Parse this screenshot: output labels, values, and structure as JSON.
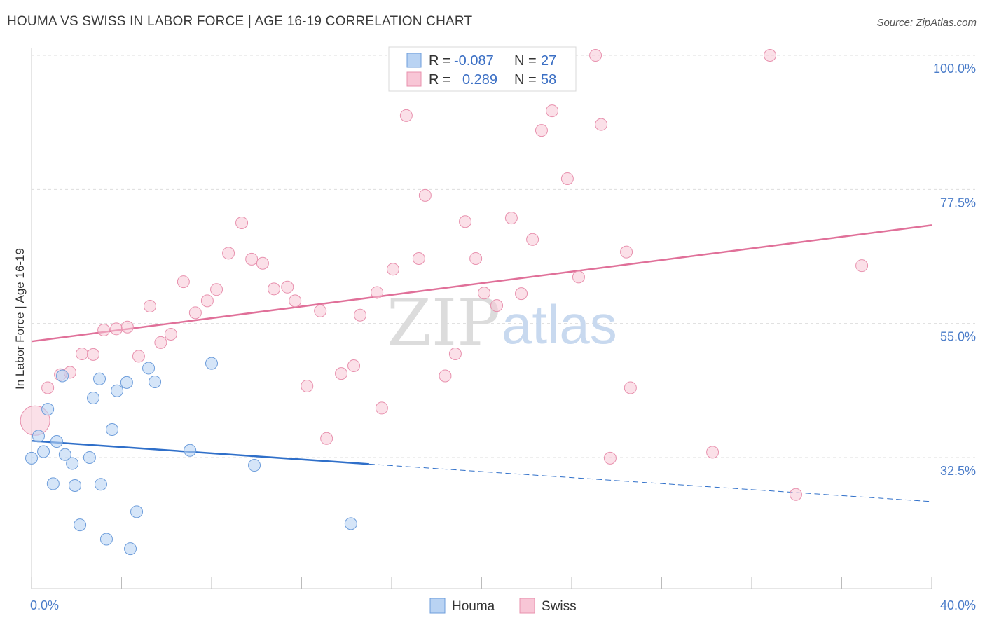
{
  "header": {
    "title": "HOUMA VS SWISS IN LABOR FORCE | AGE 16-19 CORRELATION CHART",
    "source": "Source: ZipAtlas.com"
  },
  "watermark": {
    "zip": "ZIP",
    "atlas": "atlas"
  },
  "colors": {
    "houma_fill": "#b9d3f3",
    "houma_stroke": "#6d9ddb",
    "houma_line": "#2f6fc9",
    "swiss_fill": "#f8c6d6",
    "swiss_stroke": "#e891ae",
    "swiss_line": "#e07099",
    "grid": "#dddddd",
    "axis_label": "#4a7cc9"
  },
  "legend": {
    "houma": {
      "r_label": "R =",
      "r_value": "-0.087",
      "n_label": "N =",
      "n_value": "27"
    },
    "swiss": {
      "r_label": "R =",
      "r_value": "0.289",
      "n_label": "N =",
      "n_value": "58"
    }
  },
  "bottom_legend": {
    "houma": "Houma",
    "swiss": "Swiss"
  },
  "chart_data": {
    "type": "scatter",
    "title": "HOUMA VS SWISS IN LABOR FORCE | AGE 16-19 CORRELATION CHART",
    "xlabel": "",
    "ylabel": "In Labor Force | Age 16-19",
    "xlim": [
      0,
      40
    ],
    "ylim": [
      10.5,
      100
    ],
    "x_tick_labels": [
      "0.0%",
      "40.0%"
    ],
    "y_ticks": [
      32.5,
      55.0,
      77.5,
      100.0
    ],
    "y_tick_labels": [
      "32.5%",
      "55.0%",
      "77.5%",
      "100.0%"
    ],
    "grid": true,
    "legend_position": "top-center",
    "series": [
      {
        "name": "Houma",
        "R": -0.087,
        "N": 27,
        "points": [
          [
            0.0,
            32.4
          ],
          [
            0.31,
            36.1
          ],
          [
            0.53,
            33.5
          ],
          [
            0.72,
            40.6
          ],
          [
            0.96,
            28.1
          ],
          [
            1.12,
            35.2
          ],
          [
            1.37,
            46.2
          ],
          [
            1.49,
            33.0
          ],
          [
            1.81,
            31.5
          ],
          [
            1.93,
            27.8
          ],
          [
            2.15,
            21.2
          ],
          [
            2.58,
            32.5
          ],
          [
            2.74,
            42.5
          ],
          [
            3.02,
            45.7
          ],
          [
            3.08,
            28.0
          ],
          [
            3.33,
            18.8
          ],
          [
            3.58,
            37.2
          ],
          [
            3.8,
            43.7
          ],
          [
            4.23,
            45.1
          ],
          [
            4.39,
            17.2
          ],
          [
            4.67,
            23.4
          ],
          [
            5.2,
            47.5
          ],
          [
            5.48,
            45.2
          ],
          [
            7.04,
            33.7
          ],
          [
            8.0,
            48.3
          ],
          [
            9.9,
            31.2
          ],
          [
            14.19,
            21.4
          ]
        ],
        "trend": {
          "solid": [
            [
              0,
              35.3
            ],
            [
              15,
              31.4
            ]
          ],
          "dashed": [
            [
              15,
              31.4
            ],
            [
              40,
              25.1
            ]
          ]
        }
      },
      {
        "name": "Swiss",
        "R": 0.289,
        "N": 58,
        "points": [
          [
            0.16,
            38.7
          ],
          [
            0.72,
            44.2
          ],
          [
            1.28,
            46.4
          ],
          [
            1.71,
            46.8
          ],
          [
            2.24,
            49.9
          ],
          [
            2.74,
            49.8
          ],
          [
            3.21,
            53.9
          ],
          [
            3.77,
            54.1
          ],
          [
            4.26,
            54.4
          ],
          [
            4.76,
            49.5
          ],
          [
            5.26,
            57.9
          ],
          [
            5.74,
            51.8
          ],
          [
            6.19,
            53.2
          ],
          [
            6.75,
            62.0
          ],
          [
            7.28,
            56.8
          ],
          [
            7.81,
            58.8
          ],
          [
            8.22,
            60.7
          ],
          [
            8.75,
            66.8
          ],
          [
            9.34,
            71.9
          ],
          [
            9.78,
            65.8
          ],
          [
            10.27,
            65.1
          ],
          [
            10.77,
            60.8
          ],
          [
            11.37,
            61.1
          ],
          [
            11.71,
            58.8
          ],
          [
            12.24,
            44.5
          ],
          [
            12.83,
            57.1
          ],
          [
            13.11,
            35.7
          ],
          [
            13.76,
            46.6
          ],
          [
            14.32,
            47.9
          ],
          [
            14.6,
            56.4
          ],
          [
            15.35,
            60.2
          ],
          [
            15.56,
            40.8
          ],
          [
            16.06,
            64.1
          ],
          [
            16.65,
            89.9
          ],
          [
            17.21,
            65.9
          ],
          [
            17.49,
            76.5
          ],
          [
            18.38,
            46.2
          ],
          [
            18.83,
            49.9
          ],
          [
            19.27,
            72.1
          ],
          [
            19.74,
            65.9
          ],
          [
            20.11,
            60.1
          ],
          [
            20.67,
            58.0
          ],
          [
            21.32,
            72.7
          ],
          [
            21.76,
            60.0
          ],
          [
            22.26,
            69.1
          ],
          [
            22.66,
            87.4
          ],
          [
            23.13,
            90.7
          ],
          [
            23.81,
            79.3
          ],
          [
            24.31,
            62.8
          ],
          [
            25.06,
            100.0
          ],
          [
            25.31,
            88.4
          ],
          [
            25.71,
            32.4
          ],
          [
            26.43,
            67.0
          ],
          [
            26.61,
            44.2
          ],
          [
            30.26,
            33.4
          ],
          [
            32.81,
            100.0
          ],
          [
            33.96,
            26.3
          ],
          [
            36.89,
            64.7
          ]
        ],
        "trend": {
          "solid": [
            [
              0,
              52.0
            ],
            [
              40,
              71.5
            ]
          ]
        }
      }
    ]
  }
}
